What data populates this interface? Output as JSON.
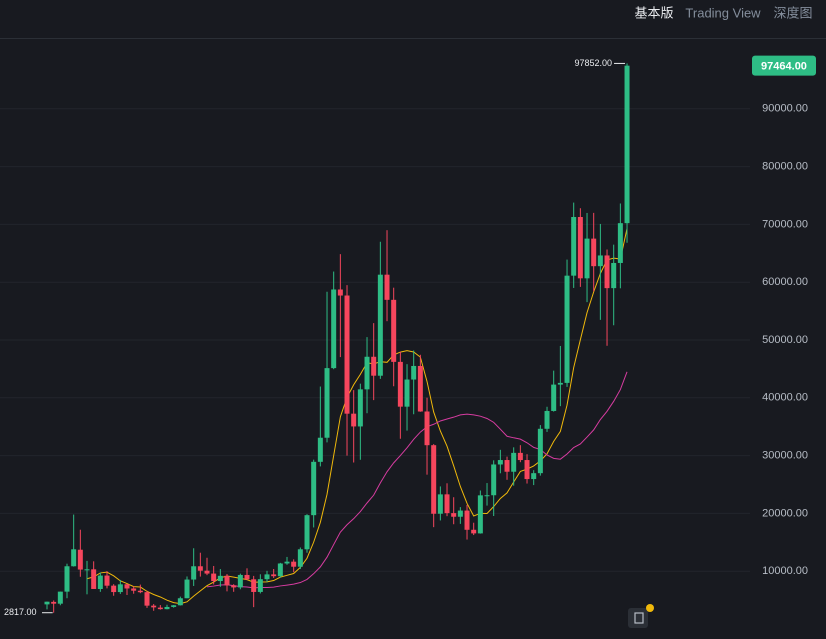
{
  "tabs": [
    "基本版",
    "Trading View",
    "深度图"
  ],
  "chart_data": {
    "type": "candlestick",
    "up_color": "#2ebd85",
    "down_color": "#f6465d",
    "grid": true,
    "ylim": [
      -1730,
      102250
    ],
    "yticks": [
      {
        "value": 10000,
        "label": "10000.00"
      },
      {
        "value": 20000,
        "label": "20000.00"
      },
      {
        "value": 30000,
        "label": "30000.00"
      },
      {
        "value": 40000,
        "label": "40000.00"
      },
      {
        "value": 50000,
        "label": "50000.00"
      },
      {
        "value": 60000,
        "label": "60000.00"
      },
      {
        "value": 70000,
        "label": "70000.00"
      },
      {
        "value": 80000,
        "label": "80000.00"
      },
      {
        "value": 90000,
        "label": "90000.00"
      }
    ],
    "open": [
      4261,
      4690,
      4379,
      6463,
      10855,
      13716,
      10285,
      10326,
      6922,
      9246,
      7500,
      6391,
      7735,
      7011,
      6619,
      6369,
      4041,
      3701,
      3434,
      3814,
      4103,
      5321,
      8555,
      10854,
      10085,
      9588,
      8299,
      9198,
      7546,
      7195,
      9351,
      8599,
      6412,
      8620,
      9448,
      9138,
      11335,
      11649,
      10776,
      13791,
      19695,
      28923,
      33092,
      45134,
      58739,
      57697,
      37253,
      35046,
      41462,
      47100,
      43820,
      61300,
      56950,
      46216,
      38466,
      43160,
      45510,
      37630,
      31802,
      19942,
      23296,
      20048,
      19423,
      20490,
      17165,
      16541,
      23126,
      23142,
      28465,
      29233,
      27210,
      30472,
      29232,
      25941,
      26962,
      34640,
      37723,
      42283,
      42580,
      61131,
      71280,
      60672,
      67540,
      62773,
      64628,
      58974,
      63328,
      70215
    ],
    "high": [
      4745,
      4940,
      6470,
      11300,
      19798,
      17176,
      11786,
      11710,
      9765,
      10020,
      7754,
      8491,
      7750,
      7410,
      7680,
      6600,
      4313,
      4140,
      4198,
      4140,
      5600,
      9090,
      13970,
      13200,
      12325,
      10905,
      10370,
      9508,
      7750,
      9578,
      10500,
      9188,
      9468,
      10067,
      10380,
      11444,
      12468,
      12050,
      14100,
      19863,
      29300,
      41950,
      58352,
      61844,
      64854,
      59500,
      41330,
      42448,
      50500,
      52920,
      67000,
      69000,
      59053,
      47990,
      45821,
      48190,
      47444,
      40023,
      31986,
      24668,
      25211,
      22799,
      21085,
      21480,
      18388,
      23960,
      25250,
      29184,
      31000,
      29820,
      31432,
      31804,
      30244,
      27483,
      35280,
      38450,
      44700,
      48969,
      63913,
      73777,
      72797,
      71979,
      71997,
      70080,
      65660,
      66498,
      73620,
      97852
    ],
    "low": [
      3400,
      2817,
      4110,
      5325,
      10800,
      9035,
      6000,
      7051,
      6426,
      7032,
      5750,
      6070,
      5880,
      6100,
      6200,
      3652,
      3156,
      3349,
      3400,
      3690,
      4067,
      5320,
      7444,
      9070,
      9320,
      7710,
      7300,
      6515,
      6435,
      6871,
      8450,
      3782,
      6150,
      8117,
      8833,
      8893,
      11111,
      9825,
      10374,
      13195,
      17572,
      28130,
      32296,
      44950,
      47044,
      30000,
      28805,
      29278,
      37332,
      39600,
      43283,
      53256,
      42000,
      32917,
      34322,
      37155,
      37578,
      26700,
      17622,
      18781,
      19520,
      18125,
      18190,
      15476,
      16256,
      16499,
      21351,
      19549,
      26942,
      25811,
      24800,
      28861,
      25166,
      24901,
      26538,
      34097,
      37615,
      38555,
      41884,
      59005,
      59191,
      56552,
      58402,
      53485,
      49000,
      52550,
      58946,
      66835
    ],
    "close": [
      4724,
      4379,
      6464,
      10855,
      13790,
      10285,
      10326,
      6924,
      9246,
      7494,
      6391,
      7730,
      7011,
      6626,
      6369,
      4041,
      3742,
      3437,
      3813,
      4105,
      5321,
      8555,
      10854,
      10085,
      9587,
      8293,
      9199,
      7546,
      7195,
      9352,
      8600,
      6410,
      8620,
      9448,
      9138,
      11335,
      11649,
      10776,
      13791,
      19695,
      28923,
      33092,
      45135,
      58740,
      57694,
      37253,
      35045,
      41462,
      47101,
      43824,
      61300,
      56950,
      46217,
      38466,
      43160,
      45510,
      37630,
      31802,
      19942,
      23293,
      20050,
      19423,
      20491,
      17164,
      16542,
      23125,
      23142,
      28465,
      29233,
      27210,
      30472,
      29232,
      25941,
      26962,
      34639,
      37723,
      42284,
      42580,
      61130,
      71280,
      60672,
      67540,
      62772,
      64628,
      58974,
      63327,
      70215,
      97464
    ],
    "overlays": [
      {
        "color": "#f0b90b",
        "values": [
          null,
          null,
          null,
          null,
          null,
          null,
          8700,
          9010,
          9700,
          9840,
          9200,
          8330,
          7860,
          7330,
          7260,
          6510,
          5970,
          5540,
          4990,
          4570,
          4390,
          4700,
          5690,
          6600,
          7490,
          8130,
          8860,
          9170,
          8970,
          8760,
          8540,
          8090,
          8130,
          8160,
          8390,
          8970,
          9290,
          9600,
          10660,
          12240,
          15030,
          18460,
          23290,
          30010,
          36710,
          40070,
          42260,
          44060,
          46060,
          45870,
          46240,
          46140,
          47410,
          47910,
          48160,
          47930,
          47040,
          42830,
          37530,
          34260,
          31630,
          28230,
          24660,
          21740,
          19560,
          20010,
          19990,
          21190,
          22590,
          23540,
          25440,
          27260,
          27660,
          28210,
          29090,
          30300,
          32460,
          34190,
          38740,
          45230,
          50040,
          54740,
          58330,
          61510,
          63860,
          64170,
          64010,
          69270
        ]
      },
      {
        "color": "#d63ca0",
        "values": [
          null,
          null,
          null,
          null,
          null,
          null,
          null,
          null,
          null,
          null,
          null,
          null,
          null,
          null,
          null,
          null,
          null,
          null,
          null,
          null,
          null,
          null,
          null,
          null,
          7280,
          7430,
          7620,
          7660,
          7510,
          7340,
          7270,
          7110,
          7180,
          7190,
          7250,
          7450,
          7600,
          7760,
          8040,
          8580,
          9570,
          10750,
          12420,
          14610,
          16760,
          18040,
          19090,
          20320,
          21800,
          23160,
          25280,
          27200,
          28740,
          30000,
          31350,
          32820,
          34070,
          35000,
          35420,
          35990,
          36340,
          36650,
          37040,
          37180,
          37050,
          36820,
          36420,
          35750,
          34570,
          33350,
          33080,
          32850,
          32220,
          31420,
          31050,
          30110,
          29520,
          29380,
          30280,
          31400,
          32010,
          33210,
          34450,
          36240,
          37660,
          39390,
          41420,
          44500
        ]
      }
    ],
    "high_label": {
      "value": 97852,
      "label": "97852.00"
    },
    "low_label": {
      "value": 2817,
      "label": "2817.00"
    },
    "last_price": {
      "value": 97464,
      "label": "97464.00"
    }
  }
}
